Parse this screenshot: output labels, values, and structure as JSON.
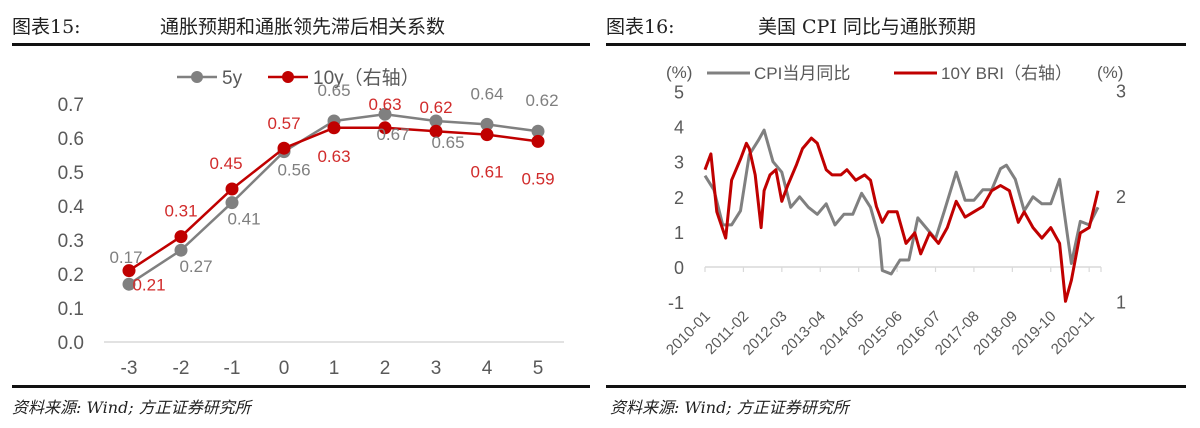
{
  "figures": [
    {
      "figure_label": "图表15:",
      "title": "通胀预期和通胀领先滞后相关系数",
      "source": "资料来源: Wind; 方正证券研究所"
    },
    {
      "figure_label": "图表16:",
      "title": "美国 CPI 同比与通胀预期",
      "source": "资料来源: Wind; 方正证券研究所"
    }
  ],
  "colors": {
    "grey": "#808080",
    "red": "#C00000",
    "axis": "#d9d9d9",
    "text": "#595959"
  },
  "chart_data": [
    {
      "type": "line",
      "title": "通胀预期和通胀领先滞后相关系数",
      "categories": [
        "-3",
        "-2",
        "-1",
        "0",
        "1",
        "2",
        "3",
        "4",
        "5"
      ],
      "series": [
        {
          "name": "5y",
          "color": "#808080",
          "values": [
            0.17,
            0.27,
            0.41,
            0.56,
            0.65,
            0.67,
            0.65,
            0.64,
            0.62
          ]
        },
        {
          "name": "10y（右轴）",
          "color": "#C00000",
          "values": [
            0.21,
            0.31,
            0.45,
            0.57,
            0.63,
            0.63,
            0.62,
            0.61,
            0.59
          ]
        }
      ],
      "yticks": [
        "0.0",
        "0.1",
        "0.2",
        "0.3",
        "0.4",
        "0.5",
        "0.6",
        "0.7"
      ],
      "ylim": [
        0,
        0.7
      ],
      "xlabel": "",
      "ylabel": "",
      "grid": false,
      "legend_position": "top",
      "data_labels": true
    },
    {
      "type": "line",
      "title": "美国 CPI 同比与通胀预期",
      "left_axis_unit": "(%)",
      "right_axis_unit": "(%)",
      "yticks_left": [
        "5",
        "4",
        "3",
        "2",
        "1",
        "0",
        "-1"
      ],
      "ylim_left": [
        -1,
        5
      ],
      "yticks_right": [
        "3",
        "2",
        "1"
      ],
      "ylim_right": [
        1,
        3
      ],
      "xticks": [
        "2010-01",
        "2011-02",
        "2012-03",
        "2013-04",
        "2014-05",
        "2015-06",
        "2016-07",
        "2017-08",
        "2018-09",
        "2019-10",
        "2020-11"
      ],
      "legend_position": "top",
      "grid": false,
      "series": [
        {
          "name": "CPI当月同比",
          "axis": "left",
          "color": "#808080",
          "x": [
            "2010-01",
            "2010-04",
            "2010-07",
            "2010-10",
            "2011-01",
            "2011-04",
            "2011-07",
            "2011-09",
            "2011-12",
            "2012-03",
            "2012-06",
            "2012-09",
            "2012-12",
            "2013-03",
            "2013-06",
            "2013-09",
            "2013-12",
            "2014-03",
            "2014-06",
            "2014-09",
            "2014-12",
            "2015-01",
            "2015-04",
            "2015-07",
            "2015-10",
            "2016-01",
            "2016-04",
            "2016-07",
            "2016-10",
            "2017-02",
            "2017-05",
            "2017-08",
            "2017-11",
            "2018-02",
            "2018-05",
            "2018-07",
            "2018-10",
            "2019-01",
            "2019-04",
            "2019-07",
            "2019-10",
            "2020-01",
            "2020-05",
            "2020-08",
            "2020-11",
            "2021-02"
          ],
          "values": [
            2.6,
            2.2,
            1.2,
            1.2,
            1.6,
            3.2,
            3.6,
            3.9,
            3.0,
            2.7,
            1.7,
            2.0,
            1.7,
            1.5,
            1.8,
            1.2,
            1.5,
            1.5,
            2.1,
            1.7,
            0.8,
            -0.1,
            -0.2,
            0.2,
            0.2,
            1.4,
            1.1,
            0.8,
            1.6,
            2.7,
            1.9,
            1.9,
            2.2,
            2.2,
            2.8,
            2.9,
            2.5,
            1.6,
            2.0,
            1.8,
            1.8,
            2.5,
            0.1,
            1.3,
            1.2,
            1.7
          ]
        },
        {
          "name": "10Y BRI（右轴）",
          "axis": "right",
          "color": "#C00000",
          "x": [
            "2010-01",
            "2010-03",
            "2010-05",
            "2010-08",
            "2010-10",
            "2011-01",
            "2011-03",
            "2011-04",
            "2011-06",
            "2011-08",
            "2011-09",
            "2011-11",
            "2012-01",
            "2012-03",
            "2012-05",
            "2012-08",
            "2012-10",
            "2013-01",
            "2013-03",
            "2013-06",
            "2013-08",
            "2013-11",
            "2014-01",
            "2014-04",
            "2014-07",
            "2014-09",
            "2014-11",
            "2015-01",
            "2015-03",
            "2015-06",
            "2015-09",
            "2015-12",
            "2016-02",
            "2016-05",
            "2016-08",
            "2016-11",
            "2017-02",
            "2017-05",
            "2017-08",
            "2017-11",
            "2018-02",
            "2018-05",
            "2018-08",
            "2018-11",
            "2019-01",
            "2019-04",
            "2019-07",
            "2019-10",
            "2020-01",
            "2020-03",
            "2020-05",
            "2020-08",
            "2020-11",
            "2021-02"
          ],
          "values": [
            2.25,
            2.4,
            1.85,
            1.6,
            2.15,
            2.35,
            2.5,
            2.45,
            2.2,
            1.7,
            2.05,
            2.2,
            2.25,
            1.95,
            2.1,
            2.3,
            2.45,
            2.55,
            2.5,
            2.25,
            2.2,
            2.2,
            2.25,
            2.15,
            2.2,
            2.15,
            1.9,
            1.75,
            1.85,
            1.85,
            1.55,
            1.65,
            1.45,
            1.65,
            1.55,
            1.7,
            1.95,
            1.8,
            1.85,
            1.9,
            2.05,
            2.1,
            2.05,
            1.75,
            1.85,
            1.7,
            1.6,
            1.7,
            1.55,
            1.0,
            1.2,
            1.65,
            1.7,
            2.05
          ]
        }
      ]
    }
  ]
}
